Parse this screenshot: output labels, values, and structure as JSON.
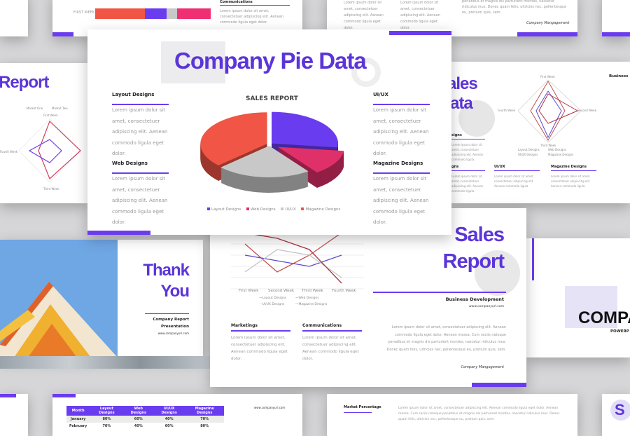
{
  "colors": {
    "accent": "#6a3cf0",
    "title": "#5b35d9",
    "layout": "#6a3cf0",
    "web": "#e0306a",
    "uiux": "#c8c8c8",
    "magazine": "#f05545"
  },
  "top_left_slide": {
    "row_label": "FIRST WEEK",
    "section": "Communications",
    "body": "Lorem ipsum dolor sit amet, consectetuer adipiscing elit. Aenean commodo ligula eget dolor."
  },
  "top_mid_slide": {
    "col1": "Lorem ipsum dolor sit amet, consectetuer adipiscing elit. Aenean commodo ligula eget dolor.",
    "col2": "Lorem ipsum dolor sit amet, consectetuer adipiscing elit. Aenean commodo ligula eget dolor.",
    "body": "penatibus et magnis dis parturient montes, nascetur ridiculus mus. Donec quam felis, ultricies nec, pellentesque eu, pretium quis, sem.",
    "signature": "Company Mangagement"
  },
  "left_report_slide": {
    "title": "Report",
    "legend": [
      "Market One",
      "Market Two"
    ],
    "axes": [
      "First Week",
      "Second Week",
      "Third Week",
      "Fourth Week"
    ]
  },
  "pie_slide": {
    "title": "Company Pie Data",
    "chart_title": "SALES REPORT",
    "sections": [
      {
        "heading": "Layout Designs",
        "body": "Lorem ipsum dolor sit amet, consectetuer adipiscing elit. Aenean commodo ligula eget dolor."
      },
      {
        "heading": "Web Designs",
        "body": "Lorem ipsum dolor sit amet, consectetuer adipiscing elit. Aenean commodo ligula eget dolor."
      },
      {
        "heading": "UI/UX",
        "body": "Lorem ipsum dolor sit amet, consectetuer adipiscing elit. Aenean commodo ligula eget dolor."
      },
      {
        "heading": "Magazine Designs",
        "body": "Lorem ipsum dolor sit amet, consectetuer adipiscing elit. Aenean commodo ligula eget dolor."
      }
    ]
  },
  "chart_data": {
    "type": "pie",
    "title": "SALES REPORT",
    "style": "3d-exploded",
    "legend_placement": "bottom",
    "categories": [
      "Layout Designs",
      "Web Designs",
      "UI/UX",
      "Magazine Designs"
    ],
    "values": [
      27,
      13,
      23,
      37
    ],
    "colors": [
      "#6a3cf0",
      "#e0306a",
      "#c8c8c8",
      "#f05545"
    ]
  },
  "right_sales_slide": {
    "title_a": "ales",
    "title_b": "ata",
    "business": "Business",
    "axes": [
      "First Week",
      "Second Week",
      "Third Week",
      "Fourth Week"
    ],
    "legend": [
      "Layout Designs",
      "Web Designs",
      "UI/UX Designs",
      "Magazine Designs"
    ],
    "sections": [
      {
        "heading": "signs",
        "body": "Lorem ipsum dolor sit amet, consectetuer adipiscing elit. Aenean commodo ligula."
      },
      {
        "heading": "gns",
        "body": "Lorem ipsum dolor sit amet, consectetuer adipiscing elit. Aenean commodo ligula."
      },
      {
        "heading": "UI/UX",
        "body": "Lorem ipsum dolor sit amet, consectetuer adipiscing elit. Aenean commodo ligula."
      },
      {
        "heading": "Magazine Designs",
        "body": "Lorem ipsum dolor sit amet, consectetuer adipiscing elit. Aenean commodo ligula."
      }
    ]
  },
  "thank_you_slide": {
    "line1": "Thank",
    "line2": "You",
    "subtitle1": "Company Report",
    "subtitle2": "Presentation",
    "url": "www.companyurl.com"
  },
  "sales_report_slide": {
    "title1": "Sales",
    "title2": "Report",
    "subtitle": "Business  Development",
    "url": "www.companyurl.com",
    "body": "Lorem ipsum dolor sit amet, consectetuer adipiscing elit. Aenean commodo ligula eget dolor. Aenean massa. Cum sociis natoque penatibus et magnis dis parturient montes, nascetur ridiculus mus. Donec quam felis, ultricies nec, pellentesque eu, pretium quis, sem.",
    "signature": "Company Mangagement",
    "x_labels": [
      "First Week",
      "Second Week",
      "Third Week",
      "Fourth Week"
    ],
    "series": [
      {
        "name": "Layout Designs",
        "color": "#c0504d",
        "values": [
          8,
          3,
          6,
          10
        ]
      },
      {
        "name": "Web Designs",
        "color": "#5b4bd0",
        "values": [
          6,
          5,
          4,
          6
        ]
      },
      {
        "name": "UI/UX Designs",
        "color": "#c4c4c4",
        "values": [
          3,
          7,
          6,
          2
        ]
      },
      {
        "name": "Magazine Designs",
        "color": "#b03040",
        "values": [
          10,
          9,
          7,
          1
        ]
      }
    ],
    "sections": [
      {
        "heading": "Marketings",
        "body": "Lorem ipsum dolor sit amet, consectetuer adipiscing elit. Aenean commodo ligula eget dolor."
      },
      {
        "heading": "Communications",
        "body": "Lorem ipsum dolor sit amet, consectetuer adipiscing elit. Aenean commodo ligula eget dolor."
      }
    ]
  },
  "company_slide": {
    "title": "COMPA",
    "subtitle": "POWERP"
  },
  "table_slide": {
    "headers": [
      "Month",
      "Layout Designs",
      "Web Designs",
      "UI/UX Designs",
      "Magazine Designs"
    ],
    "rows": [
      [
        "January",
        "80%",
        "60%",
        "40%",
        "70%"
      ],
      [
        "February",
        "70%",
        "40%",
        "60%",
        "80%"
      ]
    ],
    "url": "www.companyurl.com"
  },
  "market_slide": {
    "heading": "Market Percentage",
    "body": "Lorem ipsum dolor sit amet, consectetuer adipiscing elit. Aenean commodo ligula eget dolor. Aenean massa. Cum sociis natoque penatibus et magnis dis parturient montes, nascetur ridiculus mus. Donec quam felis, ultricies nec, pellentesque eu, pretium quis, sem."
  },
  "corner_slide": {
    "letter": "S"
  }
}
